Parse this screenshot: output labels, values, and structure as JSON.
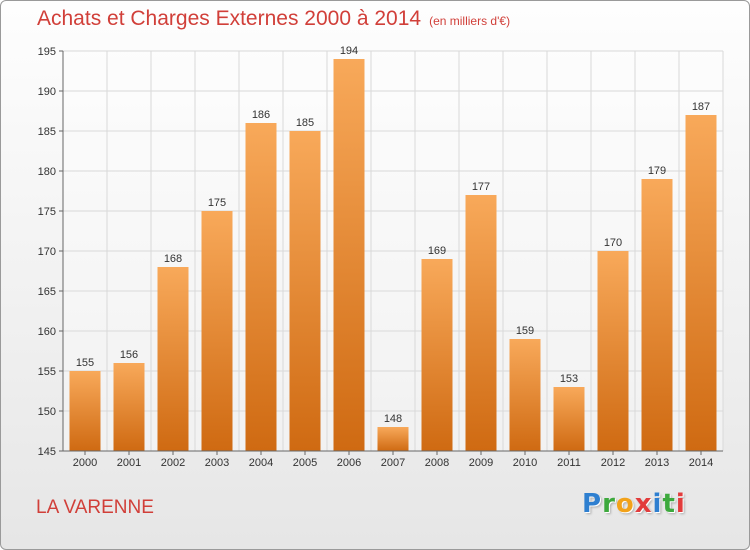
{
  "title": "Achats et Charges Externes 2000 à 2014",
  "unit_label": "(en milliers d'€)",
  "commune": "LA VARENNE",
  "logo": {
    "letters": [
      {
        "char": "P",
        "color": "#2e7fd0"
      },
      {
        "char": "r",
        "color": "#3da93d"
      },
      {
        "char": "o",
        "color": "#f2a21a"
      },
      {
        "char": "x",
        "color": "#e23c3c"
      },
      {
        "char": "i",
        "color": "#2e7fd0"
      },
      {
        "char": "t",
        "color": "#3da93d"
      },
      {
        "char": "i",
        "color": "#e23c3c"
      }
    ]
  },
  "colors": {
    "title": "#d13f39",
    "bar_light": "#f8a95a",
    "bar_dark": "#cf6a12",
    "grid": "#d9d9d9"
  },
  "chart_data": {
    "type": "bar",
    "title": "Achats et Charges Externes 2000 à 2014",
    "subtitle": "(en milliers d'€)",
    "categories": [
      "2000",
      "2001",
      "2002",
      "2003",
      "2004",
      "2005",
      "2006",
      "2007",
      "2008",
      "2009",
      "2010",
      "2011",
      "2012",
      "2013",
      "2014"
    ],
    "values": [
      155,
      156,
      168,
      175,
      186,
      185,
      194,
      148,
      169,
      177,
      159,
      153,
      170,
      179,
      187
    ],
    "xlabel": "",
    "ylabel": "",
    "ylim": [
      145,
      195
    ],
    "yticks": [
      145,
      150,
      155,
      160,
      165,
      170,
      175,
      180,
      185,
      190,
      195
    ],
    "grid": true,
    "legend": "none"
  }
}
